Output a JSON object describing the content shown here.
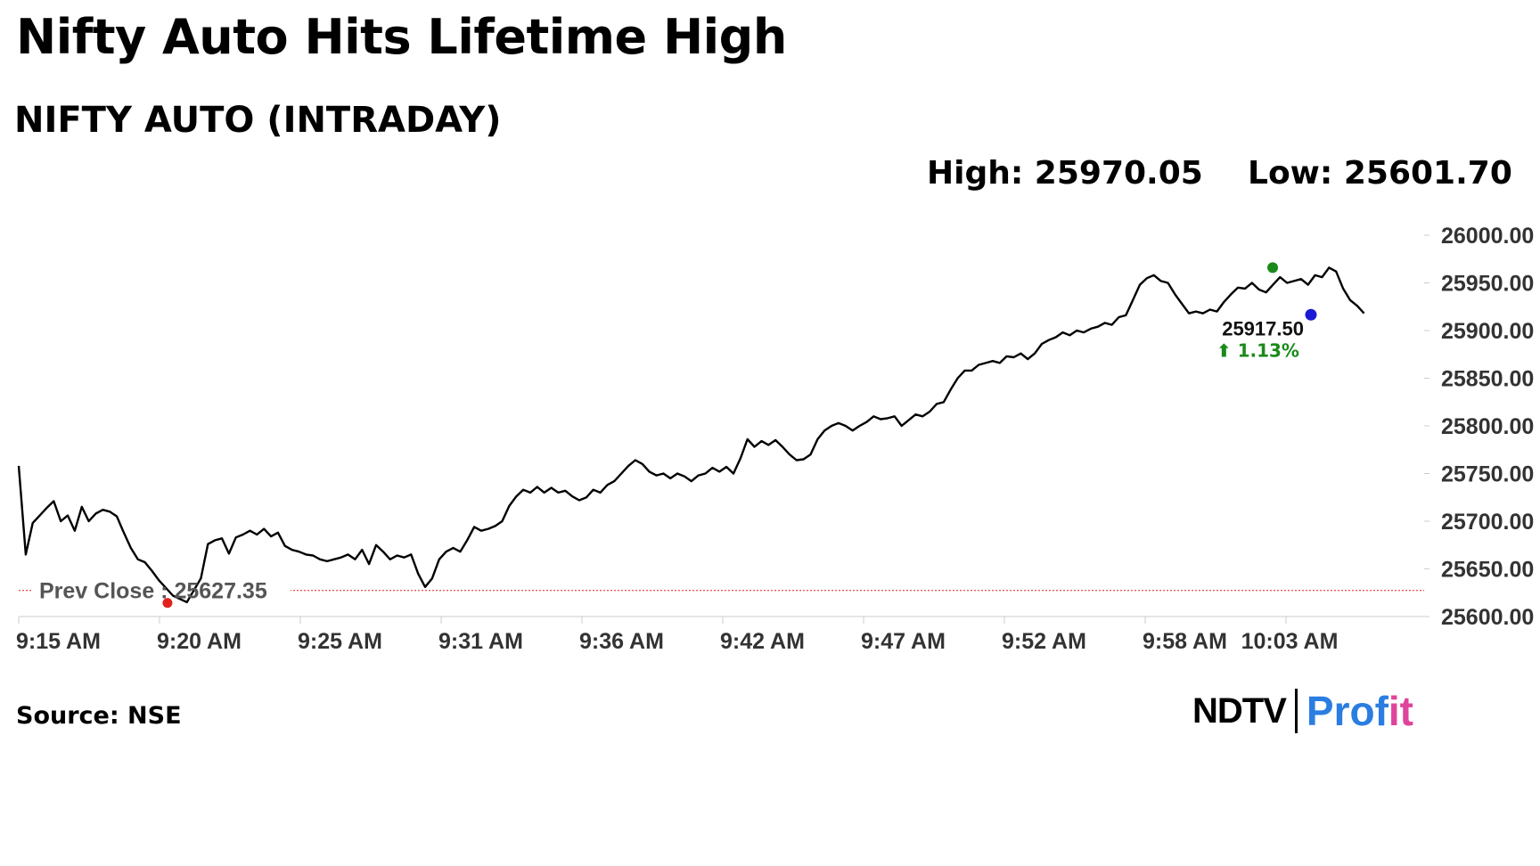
{
  "title": "Nifty Auto Hits Lifetime High",
  "subtitle": "NIFTY AUTO (INTRADAY)",
  "stats": {
    "high": "High: 25970.05",
    "low": "Low: 25601.70"
  },
  "source": "Source: NSE",
  "logo": {
    "part1": "NDTV",
    "part2a": "Prof",
    "part2b": "it"
  },
  "colors": {
    "line": "#000000",
    "prev_close": "#e0211b",
    "high_dot": "#1a8a1a",
    "last_dot": "#1a1ad6",
    "change_up": "#1a8a1a",
    "grid": "#cccccc"
  },
  "chart_data": {
    "type": "line",
    "xlabel": "",
    "ylabel": "",
    "x_ticks": [
      "9:15 AM",
      "9:20 AM",
      "9:25 AM",
      "9:31 AM",
      "9:36 AM",
      "9:42 AM",
      "9:47 AM",
      "9:52 AM",
      "9:58 AM",
      "10:03 AM"
    ],
    "y_ticks": [
      "25600.00",
      "25650.00",
      "25700.00",
      "25750.00",
      "25800.00",
      "25850.00",
      "25900.00",
      "25950.00",
      "26000.00"
    ],
    "ylim": [
      25600,
      26000
    ],
    "prev_close": {
      "value": 25627.35,
      "label": "Prev Close : 25627.35",
      "minute": 5.6
    },
    "high_point": {
      "minute": 49.5,
      "value": 25966
    },
    "last": {
      "minute": 50.8,
      "value": 25917.5,
      "label": "25917.50",
      "change": "⬆ 1.13%"
    },
    "series": [
      {
        "points": [
          [
            0.0,
            25758
          ],
          [
            0.25,
            25665
          ],
          [
            0.5,
            25698
          ],
          [
            0.75,
            25706
          ],
          [
            1.0,
            25714
          ],
          [
            1.25,
            25721
          ],
          [
            1.5,
            25700
          ],
          [
            1.75,
            25706
          ],
          [
            2.0,
            25690
          ],
          [
            2.25,
            25715
          ],
          [
            2.5,
            25700
          ],
          [
            2.75,
            25708
          ],
          [
            3.0,
            25712
          ],
          [
            3.25,
            25710
          ],
          [
            3.5,
            25705
          ],
          [
            3.75,
            25688
          ],
          [
            4.0,
            25672
          ],
          [
            4.25,
            25660
          ],
          [
            4.5,
            25657
          ],
          [
            4.75,
            25648
          ],
          [
            5.0,
            25638
          ],
          [
            5.5,
            25622
          ],
          [
            6.0,
            25615
          ],
          [
            6.5,
            25640
          ],
          [
            6.75,
            25676
          ],
          [
            7.0,
            25680
          ],
          [
            7.25,
            25682
          ],
          [
            7.5,
            25666
          ],
          [
            7.75,
            25683
          ],
          [
            8.0,
            25686
          ],
          [
            8.25,
            25690
          ],
          [
            8.5,
            25686
          ],
          [
            8.75,
            25692
          ],
          [
            9.0,
            25684
          ],
          [
            9.25,
            25688
          ],
          [
            9.5,
            25674
          ],
          [
            9.75,
            25670
          ],
          [
            10.0,
            25668
          ],
          [
            10.25,
            25665
          ],
          [
            10.5,
            25664
          ],
          [
            10.75,
            25660
          ],
          [
            11.0,
            25658
          ],
          [
            11.25,
            25660
          ],
          [
            11.5,
            25662
          ],
          [
            11.75,
            25665
          ],
          [
            12.0,
            25660
          ],
          [
            12.25,
            25670
          ],
          [
            12.5,
            25655
          ],
          [
            12.75,
            25675
          ],
          [
            13.0,
            25668
          ],
          [
            13.25,
            25660
          ],
          [
            13.5,
            25664
          ],
          [
            13.75,
            25662
          ],
          [
            14.0,
            25665
          ],
          [
            14.25,
            25645
          ],
          [
            14.5,
            25631
          ],
          [
            14.75,
            25640
          ],
          [
            15.0,
            25660
          ],
          [
            15.25,
            25668
          ],
          [
            15.5,
            25672
          ],
          [
            15.75,
            25668
          ],
          [
            16.0,
            25680
          ],
          [
            16.25,
            25694
          ],
          [
            16.5,
            25690
          ],
          [
            16.75,
            25692
          ],
          [
            17.0,
            25695
          ],
          [
            17.25,
            25700
          ],
          [
            17.5,
            25716
          ],
          [
            17.75,
            25726
          ],
          [
            18.0,
            25733
          ],
          [
            18.25,
            25730
          ],
          [
            18.5,
            25736
          ],
          [
            18.75,
            25730
          ],
          [
            19.0,
            25735
          ],
          [
            19.25,
            25730
          ],
          [
            19.5,
            25732
          ],
          [
            19.75,
            25726
          ],
          [
            20.0,
            25722
          ],
          [
            20.25,
            25725
          ],
          [
            20.5,
            25733
          ],
          [
            20.75,
            25730
          ],
          [
            21.0,
            25738
          ],
          [
            21.25,
            25742
          ],
          [
            21.5,
            25750
          ],
          [
            21.75,
            25758
          ],
          [
            22.0,
            25764
          ],
          [
            22.25,
            25760
          ],
          [
            22.5,
            25752
          ],
          [
            22.75,
            25748
          ],
          [
            23.0,
            25750
          ],
          [
            23.25,
            25745
          ],
          [
            23.5,
            25750
          ],
          [
            23.75,
            25747
          ],
          [
            24.0,
            25742
          ],
          [
            24.25,
            25748
          ],
          [
            24.5,
            25750
          ],
          [
            24.75,
            25756
          ],
          [
            25.0,
            25752
          ],
          [
            25.25,
            25757
          ],
          [
            25.5,
            25750
          ],
          [
            25.75,
            25766
          ],
          [
            26.0,
            25786
          ],
          [
            26.25,
            25778
          ],
          [
            26.5,
            25784
          ],
          [
            26.75,
            25780
          ],
          [
            27.0,
            25785
          ],
          [
            27.25,
            25778
          ],
          [
            27.5,
            25770
          ],
          [
            27.75,
            25764
          ],
          [
            28.0,
            25765
          ],
          [
            28.25,
            25770
          ],
          [
            28.5,
            25786
          ],
          [
            28.75,
            25795
          ],
          [
            29.0,
            25800
          ],
          [
            29.25,
            25803
          ],
          [
            29.5,
            25800
          ],
          [
            29.75,
            25795
          ],
          [
            30.0,
            25800
          ],
          [
            30.25,
            25804
          ],
          [
            30.5,
            25810
          ],
          [
            30.75,
            25807
          ],
          [
            31.0,
            25808
          ],
          [
            31.25,
            25810
          ],
          [
            31.5,
            25800
          ],
          [
            31.75,
            25806
          ],
          [
            32.0,
            25812
          ],
          [
            32.25,
            25810
          ],
          [
            32.5,
            25815
          ],
          [
            32.75,
            25823
          ],
          [
            33.0,
            25825
          ],
          [
            33.25,
            25838
          ],
          [
            33.5,
            25850
          ],
          [
            33.75,
            25858
          ],
          [
            34.0,
            25858
          ],
          [
            34.25,
            25864
          ],
          [
            34.5,
            25866
          ],
          [
            34.75,
            25868
          ],
          [
            35.0,
            25866
          ],
          [
            35.25,
            25873
          ],
          [
            35.5,
            25872
          ],
          [
            35.75,
            25876
          ],
          [
            36.0,
            25870
          ],
          [
            36.25,
            25876
          ],
          [
            36.5,
            25886
          ],
          [
            36.75,
            25890
          ],
          [
            37.0,
            25893
          ],
          [
            37.25,
            25898
          ],
          [
            37.5,
            25895
          ],
          [
            37.75,
            25900
          ],
          [
            38.0,
            25898
          ],
          [
            38.25,
            25902
          ],
          [
            38.5,
            25904
          ],
          [
            38.75,
            25908
          ],
          [
            39.0,
            25906
          ],
          [
            39.25,
            25914
          ],
          [
            39.5,
            25916
          ],
          [
            39.75,
            25932
          ],
          [
            40.0,
            25948
          ],
          [
            40.25,
            25955
          ],
          [
            40.5,
            25958
          ],
          [
            40.75,
            25952
          ],
          [
            41.0,
            25950
          ],
          [
            41.25,
            25938
          ],
          [
            41.5,
            25928
          ],
          [
            41.75,
            25918
          ],
          [
            42.0,
            25920
          ],
          [
            42.25,
            25918
          ],
          [
            42.5,
            25922
          ],
          [
            42.75,
            25920
          ],
          [
            43.0,
            25930
          ],
          [
            43.25,
            25938
          ],
          [
            43.5,
            25945
          ],
          [
            43.75,
            25944
          ],
          [
            44.0,
            25950
          ],
          [
            44.25,
            25943
          ],
          [
            44.5,
            25940
          ],
          [
            44.75,
            25948
          ],
          [
            45.0,
            25956
          ],
          [
            45.25,
            25950
          ],
          [
            45.5,
            25952
          ],
          [
            45.75,
            25954
          ],
          [
            46.0,
            25948
          ],
          [
            46.25,
            25958
          ],
          [
            46.5,
            25956
          ],
          [
            46.75,
            25966
          ],
          [
            47.0,
            25962
          ],
          [
            47.25,
            25944
          ],
          [
            47.5,
            25932
          ],
          [
            47.75,
            25926
          ],
          [
            48.0,
            25918
          ]
        ]
      }
    ]
  }
}
